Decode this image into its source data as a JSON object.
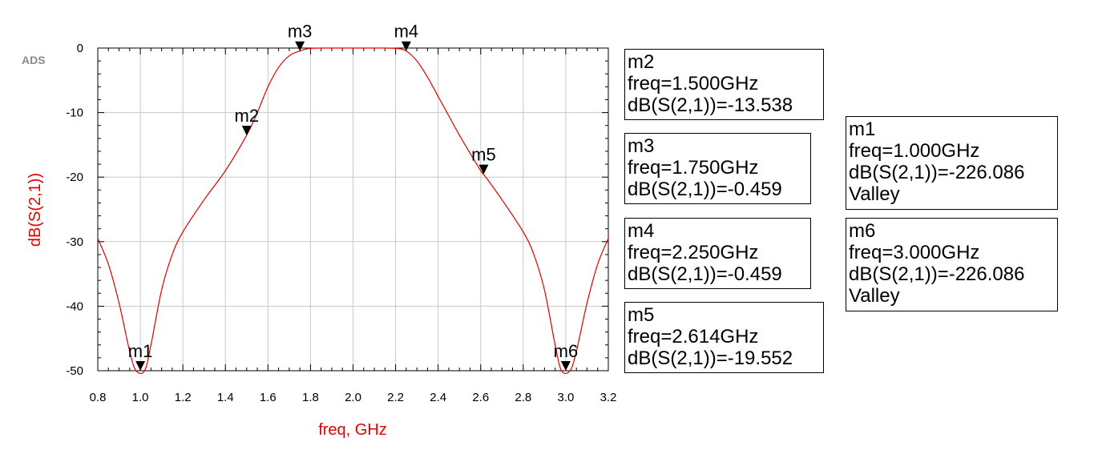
{
  "chart_data": {
    "type": "line",
    "logo": "ADS",
    "xlabel": "freq, GHz",
    "ylabel": "dB(S(2,1))",
    "xlim": [
      0.8,
      3.2
    ],
    "ylim": [
      -50,
      0
    ],
    "xticks": [
      "0.8",
      "1.0",
      "1.2",
      "1.4",
      "1.6",
      "1.8",
      "2.0",
      "2.2",
      "2.4",
      "2.6",
      "2.8",
      "3.0",
      "3.2"
    ],
    "yticks": [
      "0",
      "-10",
      "-20",
      "-30",
      "-40",
      "-50"
    ],
    "grid": true,
    "line_color": "#e00000",
    "series": [
      {
        "x": [
          0.8,
          0.85,
          0.9,
          0.95,
          0.98,
          1.02,
          1.05,
          1.1,
          1.15,
          1.2,
          1.3,
          1.4,
          1.5,
          1.55,
          1.6,
          1.65,
          1.7,
          1.75,
          1.8,
          1.9,
          2.0,
          2.1,
          2.2,
          2.25,
          2.3,
          2.35,
          2.4,
          2.45,
          2.5,
          2.6,
          2.614,
          2.7,
          2.8,
          2.85,
          2.9,
          2.95,
          2.98,
          3.02,
          3.05,
          3.1,
          3.15,
          3.2
        ],
        "y": [
          -29.5,
          -33.5,
          -39.5,
          -47.0,
          -50.0,
          -50.0,
          -46.0,
          -37.5,
          -32.0,
          -28.5,
          -23.5,
          -19.0,
          -13.5,
          -10.0,
          -6.0,
          -3.0,
          -1.2,
          -0.459,
          -0.05,
          0.0,
          0.0,
          0.0,
          -0.05,
          -0.459,
          -2.0,
          -4.5,
          -7.5,
          -10.5,
          -13.5,
          -19.0,
          -19.552,
          -23.5,
          -28.5,
          -32.0,
          -37.5,
          -46.0,
          -50.0,
          -50.0,
          -47.0,
          -39.5,
          -33.5,
          -29.5
        ]
      }
    ],
    "markers": [
      {
        "label": "m1",
        "x": 1.0,
        "y": -50
      },
      {
        "label": "m2",
        "x": 1.5,
        "y": -13.538
      },
      {
        "label": "m3",
        "x": 1.75,
        "y": -0.459
      },
      {
        "label": "m4",
        "x": 2.25,
        "y": -0.459
      },
      {
        "label": "m5",
        "x": 2.614,
        "y": -19.552
      },
      {
        "label": "m6",
        "x": 3.0,
        "y": -50
      }
    ],
    "readouts": [
      {
        "name": "m2",
        "freq": "freq=1.500GHz",
        "value": "dB(S(2,1))=-13.538",
        "extra": ""
      },
      {
        "name": "m3",
        "freq": "freq=1.750GHz",
        "value": "dB(S(2,1))=-0.459",
        "extra": ""
      },
      {
        "name": "m4",
        "freq": "freq=2.250GHz",
        "value": "dB(S(2,1))=-0.459",
        "extra": ""
      },
      {
        "name": "m5",
        "freq": "freq=2.614GHz",
        "value": "dB(S(2,1))=-19.552",
        "extra": ""
      },
      {
        "name": "m1",
        "freq": "freq=1.000GHz",
        "value": "dB(S(2,1))=-226.086",
        "extra": "Valley"
      },
      {
        "name": "m6",
        "freq": "freq=3.000GHz",
        "value": "dB(S(2,1))=-226.086",
        "extra": "Valley"
      }
    ]
  }
}
